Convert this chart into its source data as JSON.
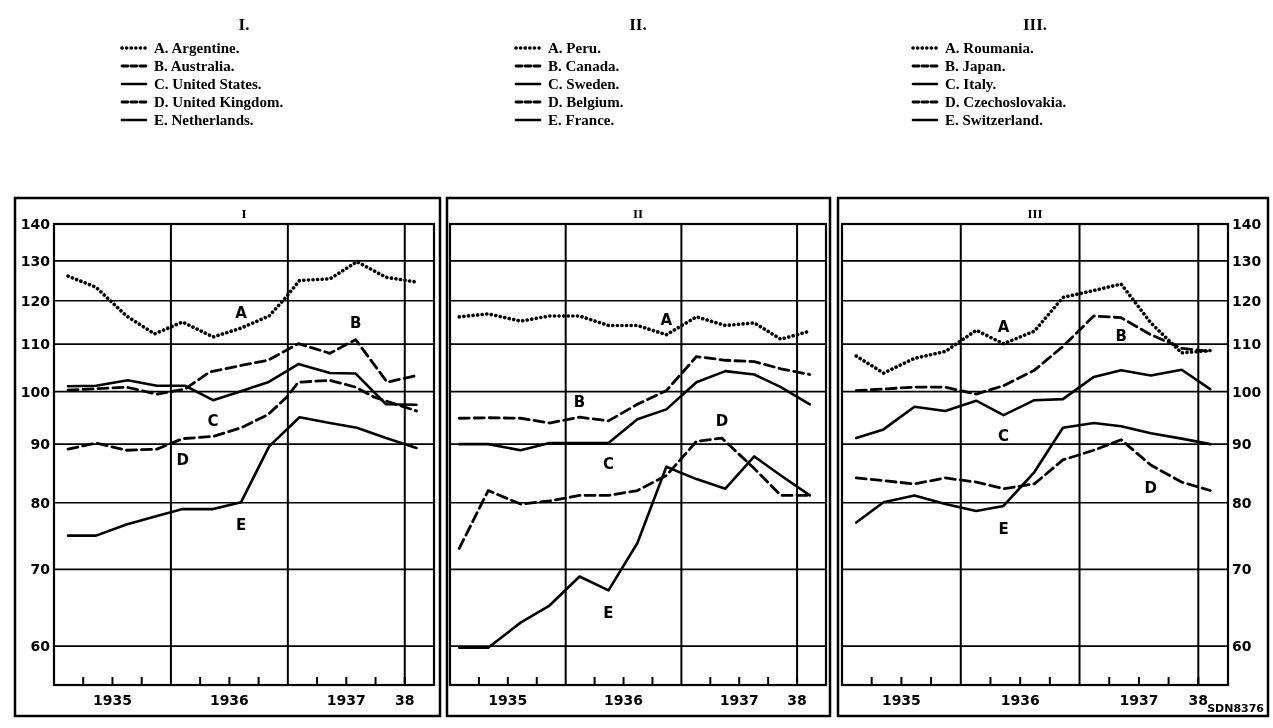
{
  "chart_data": [
    {
      "type": "line",
      "title": "I.",
      "subtitle": "I",
      "legend": "top",
      "log": "y",
      "grid": "y",
      "ylim": [
        55.5,
        140
      ],
      "yticks": [
        60,
        70,
        80,
        90,
        100,
        110,
        120,
        130,
        140
      ],
      "xlim": [
        1935,
        1938.25
      ],
      "xticks": [
        {
          "value": 1935.25,
          "label": null
        },
        {
          "value": 1935.5,
          "label": "1935"
        },
        {
          "value": 1935.75,
          "label": null
        },
        {
          "value": 1936.25,
          "label": null
        },
        {
          "value": 1936.5,
          "label": "1936"
        },
        {
          "value": 1936.75,
          "label": null
        },
        {
          "value": 1937.25,
          "label": null
        },
        {
          "value": 1937.5,
          "label": "1937"
        },
        {
          "value": 1937.75,
          "label": null
        },
        {
          "value": 1938,
          "label": "38"
        }
      ],
      "ref_lines": [
        {
          "axis": "x",
          "value": 1936
        },
        {
          "axis": "x",
          "value": 1937
        },
        {
          "axis": "x",
          "value": 1938
        }
      ],
      "series": [
        {
          "name": "A. Argentine.",
          "color": "#000000",
          "line_style": "dotted",
          "x": [
            1935.12,
            1935.36,
            1935.62,
            1935.86,
            1936.1,
            1936.36,
            1936.6,
            1936.84,
            1936.97,
            1937.1,
            1937.36,
            1937.59,
            1937.84,
            1938.1
          ],
          "values": [
            126.1,
            123.3,
            116.4,
            112.3,
            115,
            111.6,
            113.6,
            116.4,
            120.4,
            125,
            125.4,
            129.8,
            125.8,
            124.6
          ]
        },
        {
          "name": "B. Australia.",
          "color": "#000000",
          "line_style": "dashed",
          "x": [
            1935.12,
            1935.62,
            1935.88,
            1936.12,
            1936.33,
            1936.6,
            1936.83,
            1937.09,
            1937.36,
            1937.58,
            1937.85,
            1938.1
          ],
          "values": [
            100.3,
            100.9,
            99.5,
            100.5,
            104,
            105.4,
            106.5,
            110.1,
            108,
            111,
            101.9,
            103.3
          ]
        },
        {
          "name": "C. United States.",
          "color": "#000000",
          "line_style": "solid",
          "x": [
            1935.12,
            1935.36,
            1935.63,
            1935.88,
            1936.12,
            1936.36,
            1936.6,
            1936.83,
            1937.09,
            1937.36,
            1937.58,
            1937.84,
            1938.1
          ],
          "values": [
            101.1,
            101.2,
            102.3,
            101.2,
            101.2,
            98.3,
            100.1,
            101.9,
            105.7,
            103.8,
            103.7,
            97.5,
            97.4
          ]
        },
        {
          "name": "D. United Kingdom.",
          "color": "#000000",
          "line_style": "dashed",
          "x": [
            1935.12,
            1935.36,
            1935.62,
            1935.88,
            1936.1,
            1936.36,
            1936.6,
            1936.83,
            1936.99,
            1937.09,
            1937.36,
            1937.58,
            1937.74,
            1938.1
          ],
          "values": [
            89.1,
            90.2,
            88.9,
            89.1,
            91,
            91.4,
            93,
            95.5,
            98.9,
            101.9,
            102.3,
            100.9,
            98.9,
            96.2
          ]
        },
        {
          "name": "E. Netherlands.",
          "color": "#000000",
          "line_style": "solid",
          "x": [
            1935.12,
            1935.36,
            1935.62,
            1935.88,
            1936.1,
            1936.36,
            1936.6,
            1936.84,
            1937.1,
            1937.36,
            1937.59,
            1937.84,
            1938.1
          ],
          "values": [
            74.9,
            74.9,
            76.6,
            77.9,
            79,
            79,
            80.1,
            89.6,
            95,
            93.9,
            93,
            91.1,
            89.3
          ]
        }
      ],
      "annotations": [
        "A",
        "B",
        "C",
        "D",
        "E"
      ]
    },
    {
      "type": "line",
      "title": "II.",
      "subtitle": "II",
      "legend": "top",
      "log": "y",
      "grid": "y",
      "tick_labels": "x",
      "ylim": [
        55.5,
        140
      ],
      "yticks": [
        60,
        70,
        80,
        90,
        100,
        110,
        120,
        130,
        140
      ],
      "xlim": [
        1935,
        1938.25
      ],
      "xticks": [
        {
          "value": 1935.25,
          "label": null
        },
        {
          "value": 1935.5,
          "label": "1935"
        },
        {
          "value": 1935.75,
          "label": null
        },
        {
          "value": 1936.25,
          "label": null
        },
        {
          "value": 1936.5,
          "label": "1936"
        },
        {
          "value": 1936.75,
          "label": null
        },
        {
          "value": 1937.25,
          "label": null
        },
        {
          "value": 1937.5,
          "label": "1937"
        },
        {
          "value": 1937.75,
          "label": null
        },
        {
          "value": 1938,
          "label": "38"
        }
      ],
      "ref_lines": [
        {
          "axis": "x",
          "value": 1936
        },
        {
          "axis": "x",
          "value": 1937
        },
        {
          "axis": "x",
          "value": 1938
        }
      ],
      "series": [
        {
          "name": "A. Peru.",
          "color": "#000000",
          "line_style": "dotted",
          "x": [
            1935.08,
            1935.33,
            1935.61,
            1935.86,
            1936.12,
            1936.37,
            1936.62,
            1936.87,
            1937.13,
            1937.38,
            1937.63,
            1937.86,
            1938.11
          ],
          "values": [
            116.2,
            116.9,
            115.2,
            116.4,
            116.4,
            114.2,
            114.2,
            112.1,
            116.2,
            114.2,
            114.8,
            111.1,
            112.9
          ]
        },
        {
          "name": "B. Canada.",
          "color": "#000000",
          "line_style": "dashed",
          "x": [
            1935.08,
            1935.33,
            1935.61,
            1935.86,
            1936.12,
            1936.37,
            1936.62,
            1936.87,
            1937.13,
            1937.38,
            1937.63,
            1937.86,
            1938.11
          ],
          "values": [
            94.8,
            94.9,
            94.8,
            93.9,
            95,
            94.3,
            97.5,
            100.2,
            107.3,
            106.5,
            106.2,
            104.7,
            103.5
          ]
        },
        {
          "name": "C. Sweden.",
          "color": "#000000",
          "line_style": "solid",
          "x": [
            1935.08,
            1935.33,
            1935.61,
            1935.86,
            1936.12,
            1936.37,
            1936.62,
            1936.87,
            1937.13,
            1937.38,
            1937.63,
            1937.86,
            1938.11
          ],
          "values": [
            90,
            90,
            88.9,
            90.2,
            90.2,
            90.2,
            94.6,
            96.5,
            101.9,
            104.2,
            103.5,
            100.9,
            97.5
          ]
        },
        {
          "name": "D. Belgium.",
          "color": "#000000",
          "line_style": "dashed",
          "x": [
            1935.08,
            1935.33,
            1935.61,
            1935.86,
            1936.12,
            1936.37,
            1936.62,
            1936.87,
            1937.13,
            1937.35,
            1937.63,
            1937.86,
            1938.11
          ],
          "values": [
            73,
            82,
            79.8,
            80.3,
            81.2,
            81.2,
            82,
            84.5,
            90.5,
            91.1,
            85.7,
            81.2,
            81.2
          ]
        },
        {
          "name": "E. France.",
          "color": "#000000",
          "line_style": "solid",
          "x": [
            1935.08,
            1935.33,
            1935.61,
            1935.86,
            1936.12,
            1936.37,
            1936.62,
            1936.87,
            1937.13,
            1937.38,
            1937.63,
            1937.86,
            1938.11
          ],
          "values": [
            59.8,
            59.8,
            62.9,
            65.1,
            69,
            67.1,
            73.8,
            86,
            83.9,
            82.3,
            87.8,
            84.5,
            81.2
          ]
        }
      ],
      "annotations": [
        "A",
        "B",
        "C",
        "D",
        "E"
      ]
    },
    {
      "type": "line",
      "title": "III.",
      "subtitle": "III",
      "legend": "top",
      "log": "y2",
      "grid": "y",
      "y2lim": [
        55.5,
        140
      ],
      "y2ticks": [
        60,
        70,
        80,
        90,
        100,
        110,
        120,
        130,
        140
      ],
      "xlim": [
        1935,
        1938.25
      ],
      "xticks": [
        {
          "value": 1935.25,
          "label": null
        },
        {
          "value": 1935.5,
          "label": "1935"
        },
        {
          "value": 1935.75,
          "label": null
        },
        {
          "value": 1936.25,
          "label": null
        },
        {
          "value": 1936.5,
          "label": "1936"
        },
        {
          "value": 1936.75,
          "label": null
        },
        {
          "value": 1937.25,
          "label": null
        },
        {
          "value": 1937.5,
          "label": "1937"
        },
        {
          "value": 1937.75,
          "label": null
        },
        {
          "value": 1938,
          "label": "38"
        }
      ],
      "ref_lines": [
        {
          "axis": "x",
          "value": 1936
        },
        {
          "axis": "x",
          "value": 1937
        },
        {
          "axis": "x",
          "value": 1938
        }
      ],
      "series": [
        {
          "name": "A. Roumania.",
          "color": "#000000",
          "line_style": "dotted",
          "axis": "y2",
          "x": [
            1935.12,
            1935.35,
            1935.61,
            1935.87,
            1936.13,
            1936.36,
            1936.62,
            1936.86,
            1937.12,
            1937.35,
            1937.6,
            1937.86,
            1938.1
          ],
          "values": [
            107.4,
            103.8,
            106.9,
            108.4,
            113.1,
            110.1,
            112.9,
            120.8,
            122.5,
            124.1,
            114.8,
            108.1,
            108.6
          ]
        },
        {
          "name": "B. Japan.",
          "color": "#000000",
          "line_style": "dashed",
          "axis": "y2",
          "x": [
            1935.12,
            1935.61,
            1935.87,
            1936.13,
            1936.36,
            1936.62,
            1936.86,
            1937.12,
            1937.35,
            1937.6,
            1937.86,
            1938.1
          ],
          "values": [
            100.2,
            100.9,
            100.9,
            99.5,
            101.2,
            104.4,
            109.5,
            116.4,
            116,
            112.1,
            109.1,
            108.4
          ]
        },
        {
          "name": "C. Italy.",
          "color": "#000000",
          "line_style": "solid",
          "axis": "y2",
          "x": [
            1935.12,
            1935.35,
            1935.61,
            1935.87,
            1936.13,
            1936.36,
            1936.62,
            1936.86,
            1937.12,
            1937.35,
            1937.6,
            1937.86,
            1938.1
          ],
          "values": [
            91.1,
            92.7,
            97,
            96.2,
            98.2,
            95.4,
            98.3,
            98.5,
            103,
            104.4,
            103.3,
            104.5,
            100.5
          ]
        },
        {
          "name": "D. Czechoslovakia.",
          "color": "#000000",
          "line_style": "dashed",
          "axis": "y2",
          "x": [
            1935.12,
            1935.61,
            1935.87,
            1936.13,
            1936.36,
            1936.62,
            1936.86,
            1937.12,
            1937.35,
            1937.6,
            1937.86,
            1938.1
          ],
          "values": [
            84.1,
            83.1,
            84.1,
            83.4,
            82.3,
            83.1,
            87.2,
            88.9,
            90.8,
            86.3,
            83.4,
            82
          ]
        },
        {
          "name": "E. Switzerland.",
          "color": "#000000",
          "line_style": "solid",
          "axis": "y2",
          "x": [
            1935.12,
            1935.35,
            1935.61,
            1935.87,
            1936.13,
            1936.36,
            1936.62,
            1936.86,
            1937.12,
            1937.35,
            1937.6,
            1937.86,
            1938.1
          ],
          "values": [
            76.9,
            80.1,
            81.2,
            79.8,
            78.7,
            79.5,
            85.1,
            93,
            93.9,
            93.3,
            92,
            91,
            90
          ]
        }
      ],
      "annotations": [
        "A",
        "B",
        "C",
        "D",
        "E",
        "SDN8376"
      ]
    }
  ]
}
